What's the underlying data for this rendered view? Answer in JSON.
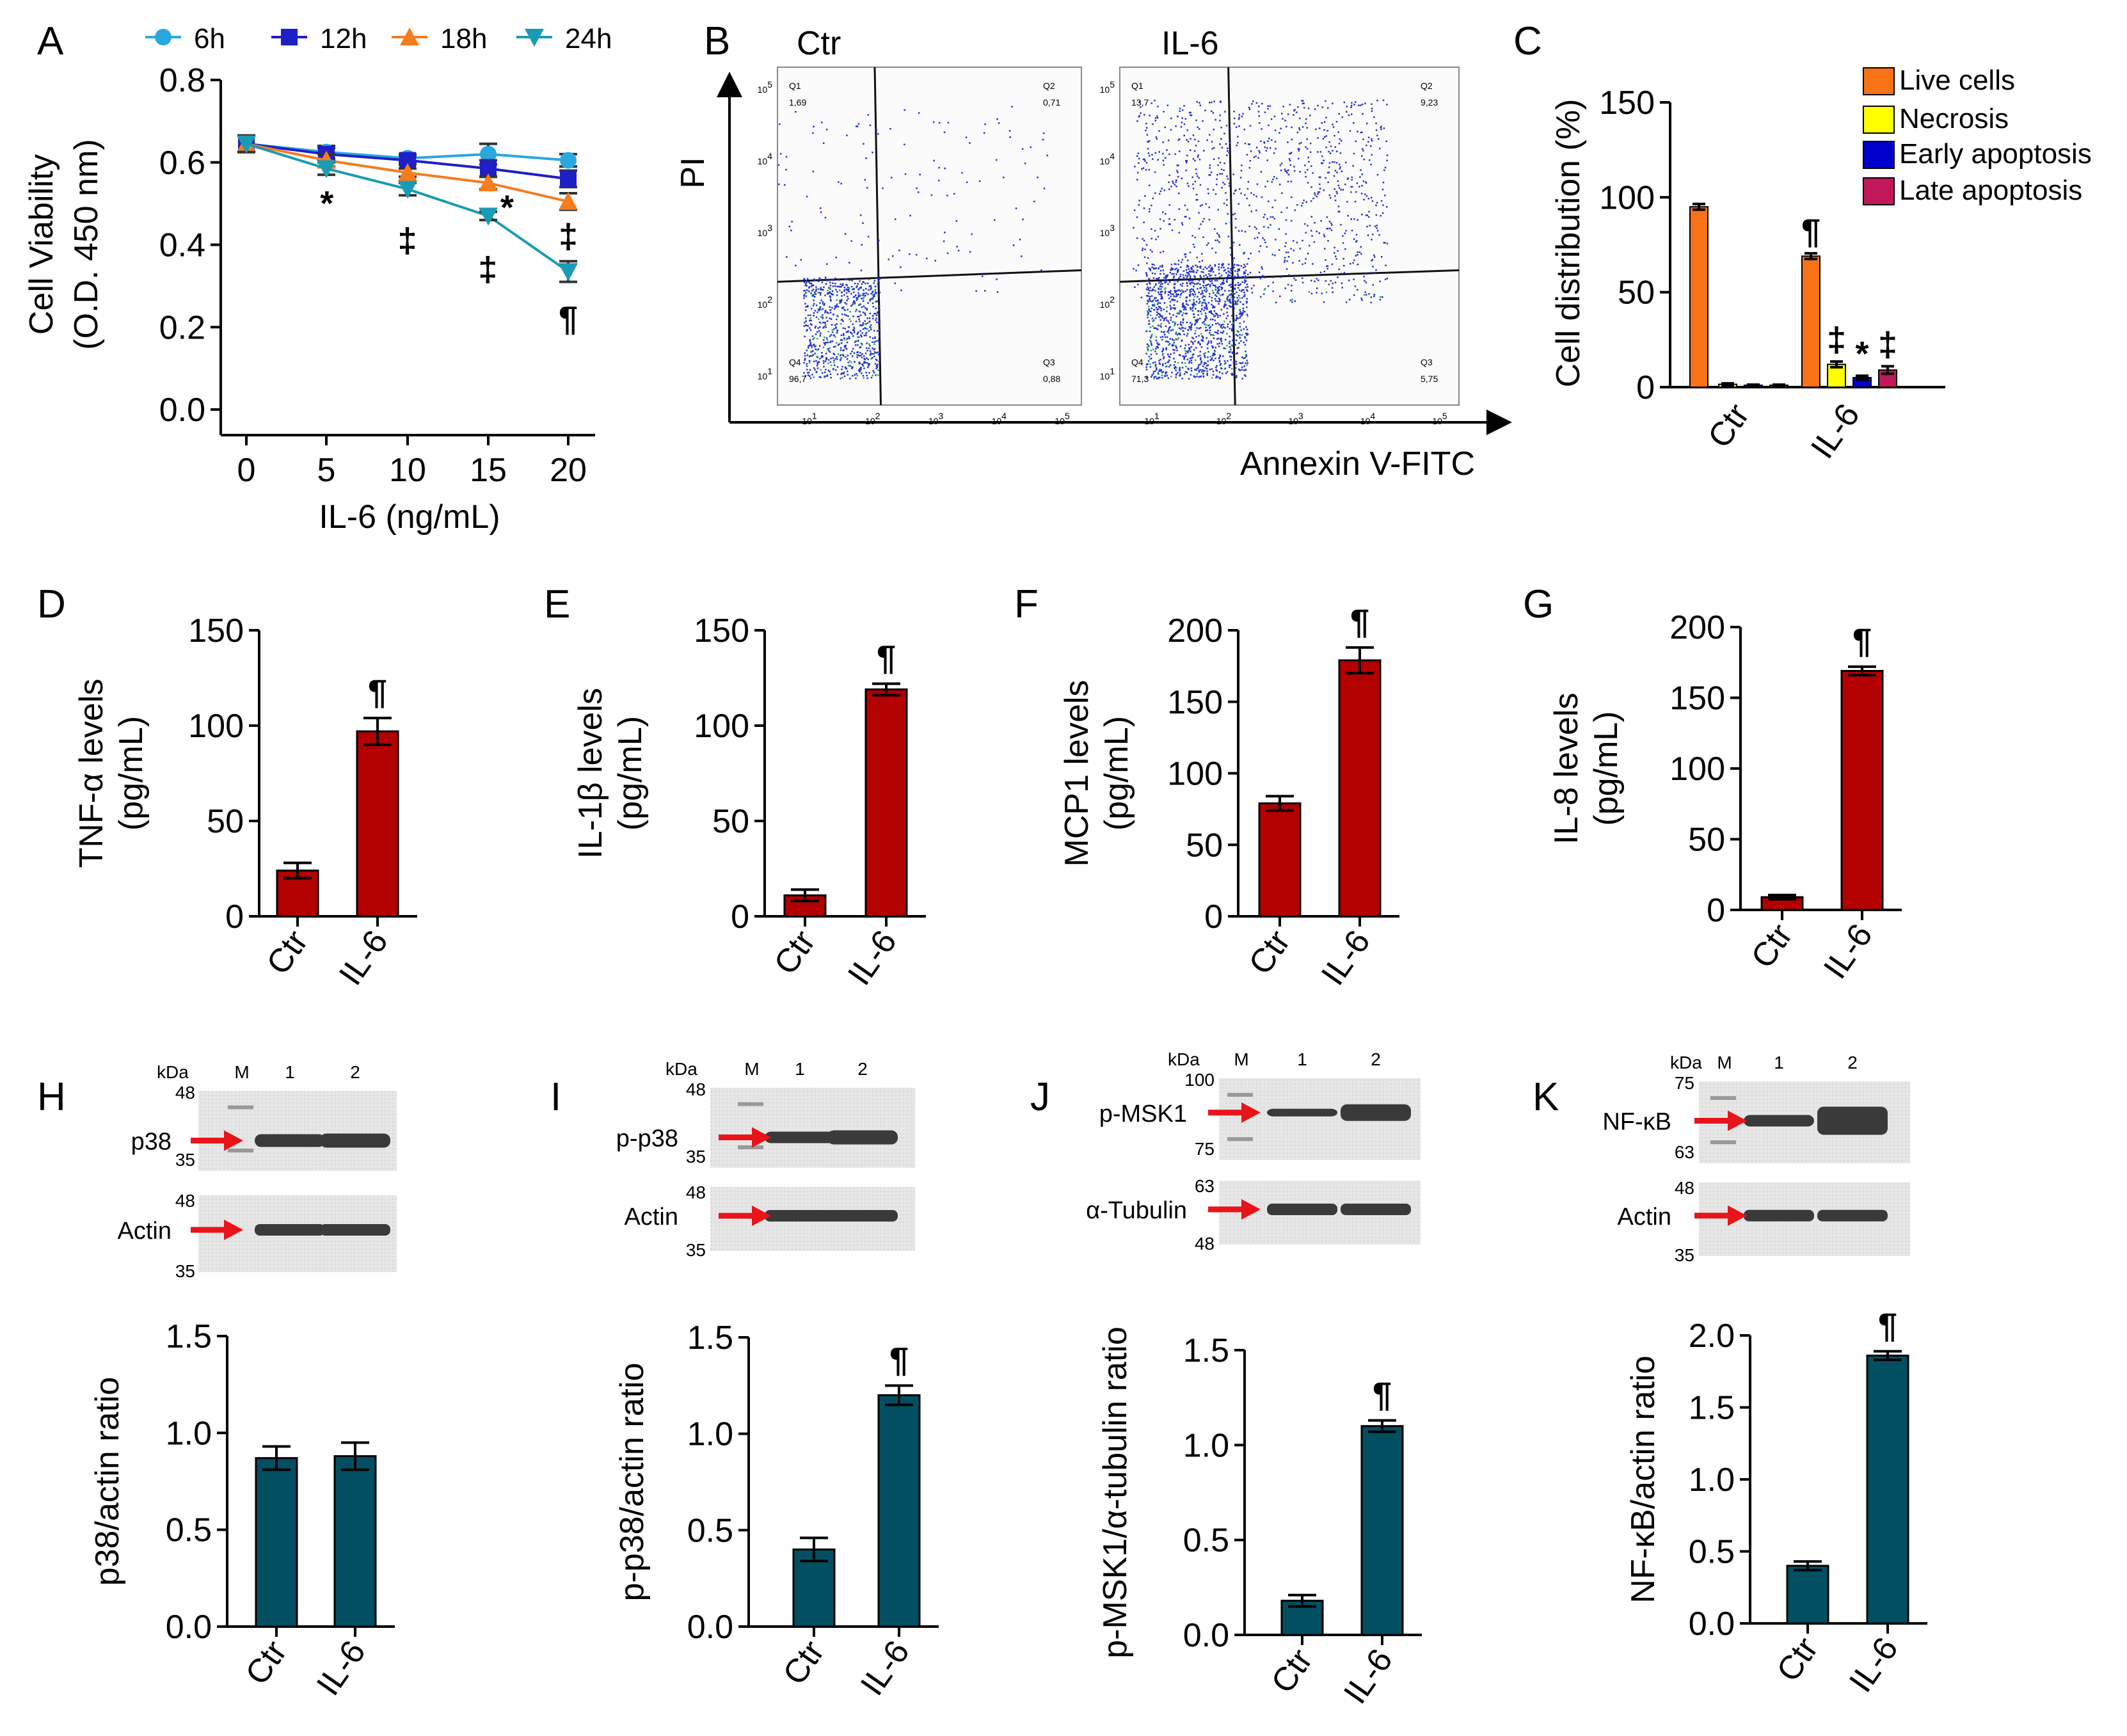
{
  "figure": {
    "panel_labels": [
      "A",
      "B",
      "C",
      "D",
      "E",
      "F",
      "G",
      "H",
      "I",
      "J",
      "K"
    ]
  },
  "colors": {
    "bar_red": "#b30000",
    "bar_teal": "#034f62",
    "live": "#f97316",
    "necrosis": "#ffff00",
    "early": "#0000cc",
    "late": "#c2185b",
    "s6h": "#29a8e0",
    "s12h": "#1f1fc7",
    "s18h": "#f57c1f",
    "s24h": "#1a9bb5",
    "arrow": "#e8141a"
  },
  "chart_data": [
    {
      "id": "A",
      "type": "line",
      "xlabel": "IL-6 (ng/mL)",
      "ylabel": "Cell Viability",
      "ylabel2": "(O.D. 450 nm)",
      "x": [
        0,
        5,
        10,
        15,
        20
      ],
      "xticks": [
        "0",
        "5",
        "10",
        "15",
        "20"
      ],
      "ylim": [
        0,
        0.8
      ],
      "yticks": [
        "0.0",
        "0.2",
        "0.4",
        "0.6",
        "0.8"
      ],
      "series": [
        {
          "name": "6h",
          "marker": "circle",
          "values": [
            0.645,
            0.625,
            0.61,
            0.62,
            0.605
          ],
          "err": [
            0.02,
            0.015,
            0.01,
            0.025,
            0.015
          ]
        },
        {
          "name": "12h",
          "marker": "square",
          "values": [
            0.645,
            0.62,
            0.605,
            0.585,
            0.56
          ],
          "err": [
            0.02,
            0.015,
            0.01,
            0.02,
            0.02
          ]
        },
        {
          "name": "18h",
          "marker": "triangle",
          "values": [
            0.645,
            0.605,
            0.575,
            0.55,
            0.505
          ],
          "err": [
            0.02,
            0.015,
            0.01,
            0.015,
            0.02
          ]
        },
        {
          "name": "24h",
          "marker": "triangle-down",
          "values": [
            0.645,
            0.585,
            0.535,
            0.47,
            0.335
          ],
          "err": [
            0.02,
            0.015,
            0.015,
            0.01,
            0.025
          ]
        }
      ],
      "annotations": [
        {
          "text": "*",
          "x": 5,
          "y": 0.5
        },
        {
          "text": "‡",
          "x": 10,
          "y": 0.41
        },
        {
          "text": "‡",
          "x": 15,
          "y": 0.34
        },
        {
          "text": "*",
          "x": 16.2,
          "y": 0.49
        },
        {
          "text": "‡",
          "x": 20,
          "y": 0.42
        },
        {
          "text": "¶",
          "x": 20,
          "y": 0.22
        }
      ]
    },
    {
      "id": "C",
      "type": "bar",
      "ylabel": "Cell distribution (%)",
      "categories": [
        "Ctr",
        "IL-6"
      ],
      "ylim": [
        0,
        150
      ],
      "yticks": [
        "0",
        "50",
        "100",
        "150"
      ],
      "series": [
        {
          "name": "Live cells",
          "values": [
            95,
            69
          ],
          "err": [
            1.5,
            1.5
          ]
        },
        {
          "name": "Necrosis",
          "values": [
            1.5,
            12
          ],
          "err": [
            0.5,
            1.5
          ]
        },
        {
          "name": "Early apoptosis",
          "values": [
            1,
            5
          ],
          "err": [
            0.3,
            1
          ]
        },
        {
          "name": "Late apoptosis",
          "values": [
            1,
            9
          ],
          "err": [
            0.3,
            2
          ]
        }
      ],
      "annotations": [
        {
          "text": "¶",
          "series": 0,
          "cat": 1
        },
        {
          "text": "‡",
          "series": 1,
          "cat": 1
        },
        {
          "text": "*",
          "series": 2,
          "cat": 1
        },
        {
          "text": "‡",
          "series": 3,
          "cat": 1
        }
      ]
    },
    {
      "id": "D",
      "type": "bar",
      "ylabel": "TNF-α levels",
      "ylabel2": "(pg/mL)",
      "categories": [
        "Ctr",
        "IL-6"
      ],
      "values": [
        24,
        97
      ],
      "err": [
        4,
        7
      ],
      "ylim": [
        0,
        150
      ],
      "yticks": [
        "0",
        "50",
        "100",
        "150"
      ],
      "sig": "¶"
    },
    {
      "id": "E",
      "type": "bar",
      "ylabel": "IL-1β levels",
      "ylabel2": "(pg/mL)",
      "categories": [
        "Ctr",
        "IL-6"
      ],
      "values": [
        11,
        119
      ],
      "err": [
        3,
        3
      ],
      "ylim": [
        0,
        150
      ],
      "yticks": [
        "0",
        "50",
        "100",
        "150"
      ],
      "sig": "¶"
    },
    {
      "id": "F",
      "type": "bar",
      "ylabel": "MCP1 levels",
      "ylabel2": "(pg/mL)",
      "categories": [
        "Ctr",
        "IL-6"
      ],
      "values": [
        79,
        179
      ],
      "err": [
        5,
        9
      ],
      "ylim": [
        0,
        200
      ],
      "yticks": [
        "0",
        "50",
        "100",
        "150",
        "200"
      ],
      "sig": "¶"
    },
    {
      "id": "G",
      "type": "bar",
      "ylabel": "IL-8 levels",
      "ylabel2": "(pg/mL)",
      "categories": [
        "Ctr",
        "IL-6"
      ],
      "values": [
        9,
        169
      ],
      "err": [
        1.5,
        3
      ],
      "ylim": [
        0,
        200
      ],
      "yticks": [
        "0",
        "50",
        "100",
        "150",
        "200"
      ],
      "sig": "¶"
    },
    {
      "id": "H",
      "type": "bar",
      "ylabel": "p38/actin ratio",
      "categories": [
        "Ctr",
        "IL-6"
      ],
      "values": [
        0.87,
        0.88
      ],
      "err": [
        0.06,
        0.07
      ],
      "ylim": [
        0,
        1.5
      ],
      "yticks": [
        "0.0",
        "0.5",
        "1.0",
        "1.5"
      ],
      "sig": ""
    },
    {
      "id": "I",
      "type": "bar",
      "ylabel": "p-p38/actin ratio",
      "categories": [
        "Ctr",
        "IL-6"
      ],
      "values": [
        0.4,
        1.2
      ],
      "err": [
        0.06,
        0.05
      ],
      "ylim": [
        0,
        1.5
      ],
      "yticks": [
        "0.0",
        "0.5",
        "1.0",
        "1.5"
      ],
      "sig": "¶"
    },
    {
      "id": "J",
      "type": "bar",
      "ylabel": "p-MSK1/α-tubulin ratio",
      "categories": [
        "Ctr",
        "IL-6"
      ],
      "values": [
        0.18,
        1.1
      ],
      "err": [
        0.03,
        0.03
      ],
      "ylim": [
        0,
        1.5
      ],
      "yticks": [
        "0.0",
        "0.5",
        "1.0",
        "1.5"
      ],
      "sig": "¶"
    },
    {
      "id": "K",
      "type": "bar",
      "ylabel": "NF-κB/actin ratio",
      "categories": [
        "Ctr",
        "IL-6"
      ],
      "values": [
        0.4,
        1.86
      ],
      "err": [
        0.03,
        0.03
      ],
      "ylim": [
        0,
        2.0
      ],
      "yticks": [
        "0.0",
        "0.5",
        "1.0",
        "1.5",
        "2.0"
      ],
      "sig": "¶"
    }
  ],
  "flow": {
    "ylabel": "PI",
    "xlabel": "Annexin V-FITC",
    "axis_exponents": [
      "1",
      "2",
      "3",
      "4",
      "5"
    ],
    "plots": [
      {
        "title": "Ctr",
        "q1": "Q1",
        "q1v": "1,69",
        "q2": "Q2",
        "q2v": "0,71",
        "q3": "Q3",
        "q3v": "0,88",
        "q4": "Q4",
        "q4v": "96,7"
      },
      {
        "title": "IL-6",
        "q1": "Q1",
        "q1v": "13,7",
        "q2": "Q2",
        "q2v": "9,23",
        "q3": "Q3",
        "q3v": "5,75",
        "q4": "Q4",
        "q4v": "71,3"
      }
    ]
  },
  "blots": {
    "H": {
      "kda": "kDa",
      "lanes": [
        "M",
        "1",
        "2"
      ],
      "top_label": "p38",
      "bottom_label": "Actin",
      "top_markers": [
        "48",
        "35"
      ],
      "bottom_markers": [
        "48",
        "35"
      ]
    },
    "I": {
      "kda": "kDa",
      "lanes": [
        "M",
        "1",
        "2"
      ],
      "top_label": "p-p38",
      "bottom_label": "Actin",
      "top_markers": [
        "48",
        "35"
      ],
      "bottom_markers": [
        "48",
        "35"
      ]
    },
    "J": {
      "kda": "kDa",
      "lanes": [
        "M",
        "1",
        "2"
      ],
      "top_label": "p-MSK1",
      "bottom_label": "α-Tubulin",
      "top_markers": [
        "100",
        "75"
      ],
      "bottom_markers": [
        "63",
        "48"
      ]
    },
    "K": {
      "kda": "kDa",
      "lanes": [
        "M",
        "1",
        "2"
      ],
      "top_label": "NF-κB",
      "bottom_label": "Actin",
      "top_markers": [
        "75",
        "63"
      ],
      "bottom_markers": [
        "48",
        "35"
      ]
    }
  }
}
